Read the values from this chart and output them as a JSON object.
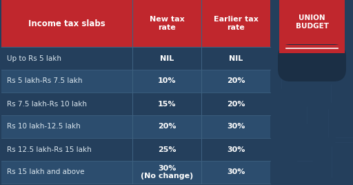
{
  "header_col1": "Income tax slabs",
  "header_col2": "New tax\nrate",
  "header_col3": "Earlier tax\nrate",
  "rows": [
    [
      "Up to Rs 5 lakh",
      "NIL",
      "NIL"
    ],
    [
      "Rs 5 lakh-Rs 7.5 lakh",
      "10%",
      "20%"
    ],
    [
      "Rs 7.5 lakh-Rs 10 lakh",
      "15%",
      "20%"
    ],
    [
      "Rs 10 lakh-12.5 lakh",
      "20%",
      "30%"
    ],
    [
      "Rs 12.5 lakh-Rs 15 lakh",
      "25%",
      "30%"
    ],
    [
      "Rs 15 lakh and above",
      "30%\n(No change)",
      "30%"
    ]
  ],
  "header_bg": "#c0272d",
  "table_bg_dark": "#243f5c",
  "table_bg_light": "#2c4d6e",
  "header_text_color": "#ffffff",
  "col1_text_color": "#dce8f0",
  "col23_text_color": "#ffffff",
  "divider_color": "#3d607f",
  "badge_red": "#c0272d",
  "badge_dark": "#1b2f45",
  "fig_bg": "#243f5c",
  "fig_w": 5.12,
  "fig_h": 2.68,
  "dpi": 100
}
